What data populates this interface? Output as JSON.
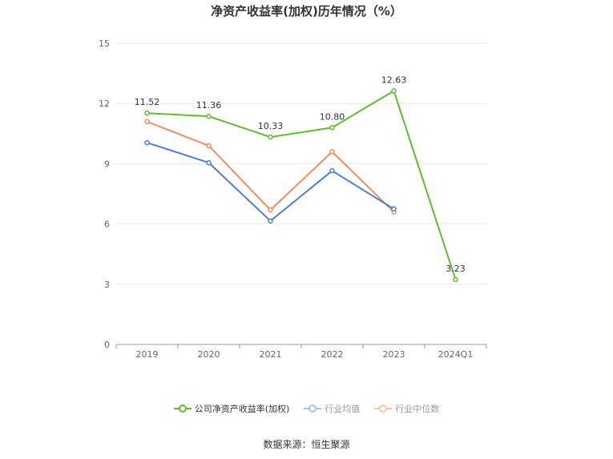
{
  "chart_data": {
    "type": "line",
    "title": "净资产收益率(加权)历年情况（%）",
    "categories": [
      "2019",
      "2020",
      "2021",
      "2022",
      "2023",
      "2024Q1"
    ],
    "ylim": [
      0,
      15
    ],
    "yticks": [
      "0",
      "3",
      "6",
      "9",
      "12",
      "15"
    ],
    "grid": true,
    "legend_position": "bottom",
    "series": [
      {
        "name": "公司净资产收益率(加权)",
        "color": "#5ac227",
        "values": [
          11.52,
          11.36,
          10.33,
          10.8,
          12.63,
          3.23
        ],
        "labels": [
          "11.52",
          "11.36",
          "10.33",
          "10.80",
          "12.63",
          "3.23"
        ]
      },
      {
        "name": "行业均值",
        "color": "#4a7fdc",
        "values": [
          10.05,
          9.05,
          6.15,
          8.65,
          6.75,
          null
        ]
      },
      {
        "name": "行业中位数",
        "color": "#f78b5c",
        "values": [
          11.1,
          9.9,
          6.7,
          9.6,
          6.6,
          null
        ]
      }
    ]
  },
  "source": "数据来源：恒生聚源"
}
